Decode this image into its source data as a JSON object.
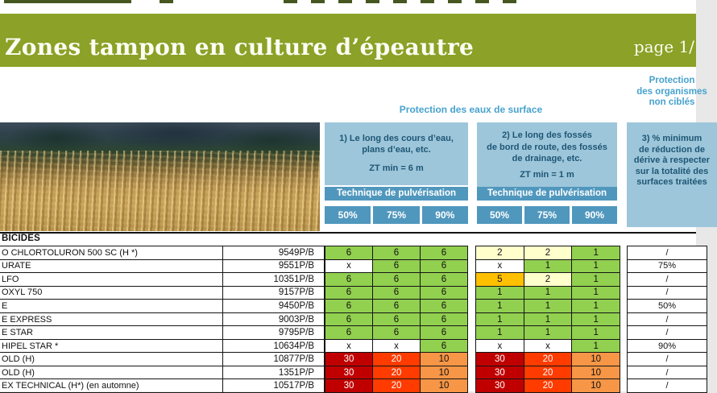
{
  "page": {
    "title": "Zones tampon en culture d’épeautre",
    "page_label": "page 1/"
  },
  "header": {
    "surface_title": "Protection des eaux de surface",
    "nontarget_lines": [
      "Protection",
      "des organismes",
      "non ciblés"
    ],
    "zone1": {
      "lines": [
        "1) Le long des cours d’eau,",
        "plans d’eau, etc."
      ],
      "zt": "ZT min = 6 m",
      "technique": "Technique de pulvérisation",
      "percents": [
        "50%",
        "75%",
        "90%"
      ]
    },
    "zone2": {
      "lines": [
        "2) Le long des fossés",
        "de bord de route, des fossés",
        "de drainage, etc."
      ],
      "zt": "ZT min = 1 m",
      "technique": "Technique de pulvérisation",
      "percents": [
        "50%",
        "75%",
        "90%"
      ]
    },
    "zone3": {
      "lines": [
        "3) % minimum",
        "de réduction de",
        "dérive à respecter",
        "sur la totalité des",
        "surfaces traitées"
      ]
    }
  },
  "table": {
    "section_label": "BICIDES",
    "rows": [
      {
        "name": "O CHLORTOLURON 500 SC (H *)",
        "reg": "9549P/B",
        "zone1": [
          [
            "6",
            "green"
          ],
          [
            "6",
            "green"
          ],
          [
            "6",
            "green"
          ]
        ],
        "zone2": [
          [
            "2",
            "pale"
          ],
          [
            "2",
            "pale"
          ],
          [
            "1",
            "green"
          ]
        ],
        "reduction": "/"
      },
      {
        "name": "URATE",
        "reg": "9551P/B",
        "zone1": [
          [
            "x",
            "white"
          ],
          [
            "6",
            "green"
          ],
          [
            "6",
            "green"
          ]
        ],
        "zone2": [
          [
            "x",
            "white"
          ],
          [
            "1",
            "green"
          ],
          [
            "1",
            "green"
          ]
        ],
        "reduction": "75%"
      },
      {
        "name": "LFO",
        "reg": "10351P/B",
        "zone1": [
          [
            "6",
            "green"
          ],
          [
            "6",
            "green"
          ],
          [
            "6",
            "green"
          ]
        ],
        "zone2": [
          [
            "5",
            "amber"
          ],
          [
            "2",
            "pale"
          ],
          [
            "1",
            "green"
          ]
        ],
        "reduction": "/"
      },
      {
        "name": "OXYL 750",
        "reg": "9157P/B",
        "zone1": [
          [
            "6",
            "green"
          ],
          [
            "6",
            "green"
          ],
          [
            "6",
            "green"
          ]
        ],
        "zone2": [
          [
            "1",
            "green"
          ],
          [
            "1",
            "green"
          ],
          [
            "1",
            "green"
          ]
        ],
        "reduction": "/"
      },
      {
        "name": "E",
        "reg": "9450P/B",
        "zone1": [
          [
            "6",
            "green"
          ],
          [
            "6",
            "green"
          ],
          [
            "6",
            "green"
          ]
        ],
        "zone2": [
          [
            "1",
            "green"
          ],
          [
            "1",
            "green"
          ],
          [
            "1",
            "green"
          ]
        ],
        "reduction": "50%"
      },
      {
        "name": "E EXPRESS",
        "reg": "9003P/B",
        "zone1": [
          [
            "6",
            "green"
          ],
          [
            "6",
            "green"
          ],
          [
            "6",
            "green"
          ]
        ],
        "zone2": [
          [
            "1",
            "green"
          ],
          [
            "1",
            "green"
          ],
          [
            "1",
            "green"
          ]
        ],
        "reduction": "/"
      },
      {
        "name": "E STAR",
        "reg": "9795P/B",
        "zone1": [
          [
            "6",
            "green"
          ],
          [
            "6",
            "green"
          ],
          [
            "6",
            "green"
          ]
        ],
        "zone2": [
          [
            "1",
            "green"
          ],
          [
            "1",
            "green"
          ],
          [
            "1",
            "green"
          ]
        ],
        "reduction": "/"
      },
      {
        "name": "HIPEL STAR *",
        "reg": "10634P/B",
        "zone1": [
          [
            "x",
            "white"
          ],
          [
            "x",
            "white"
          ],
          [
            "6",
            "green"
          ]
        ],
        "zone2": [
          [
            "x",
            "white"
          ],
          [
            "x",
            "white"
          ],
          [
            "1",
            "green"
          ]
        ],
        "reduction": "90%"
      },
      {
        "name": "OLD (H)",
        "reg": "10877P/B",
        "zone1": [
          [
            "30",
            "dred"
          ],
          [
            "20",
            "red"
          ],
          [
            "10",
            "orange"
          ]
        ],
        "zone2": [
          [
            "30",
            "dred"
          ],
          [
            "20",
            "red"
          ],
          [
            "10",
            "orange"
          ]
        ],
        "reduction": "/"
      },
      {
        "name": "OLD (H)",
        "reg": "1351P/P",
        "zone1": [
          [
            "30",
            "dred"
          ],
          [
            "20",
            "red"
          ],
          [
            "10",
            "orange"
          ]
        ],
        "zone2": [
          [
            "30",
            "dred"
          ],
          [
            "20",
            "red"
          ],
          [
            "10",
            "orange"
          ]
        ],
        "reduction": "/"
      },
      {
        "name": "EX TECHNICAL (H*) (en automne)",
        "reg": "10517P/B",
        "zone1": [
          [
            "30",
            "dred"
          ],
          [
            "20",
            "red"
          ],
          [
            "10",
            "orange"
          ]
        ],
        "zone2": [
          [
            "30",
            "dred"
          ],
          [
            "20",
            "red"
          ],
          [
            "10",
            "orange"
          ]
        ],
        "reduction": "/"
      }
    ]
  },
  "colors": {
    "green": "#92D050",
    "pale": "#FFFFCC",
    "amber": "#FFC000",
    "white": "#FFFFFF",
    "dred": "#C00000",
    "red": "#FF3B00",
    "orange": "#F79646",
    "accent_blue": "#47A2CE",
    "panel_blue": "#9DC6DB",
    "panel_blue_dark": "#5097BD",
    "header_green": "#8BA127"
  }
}
